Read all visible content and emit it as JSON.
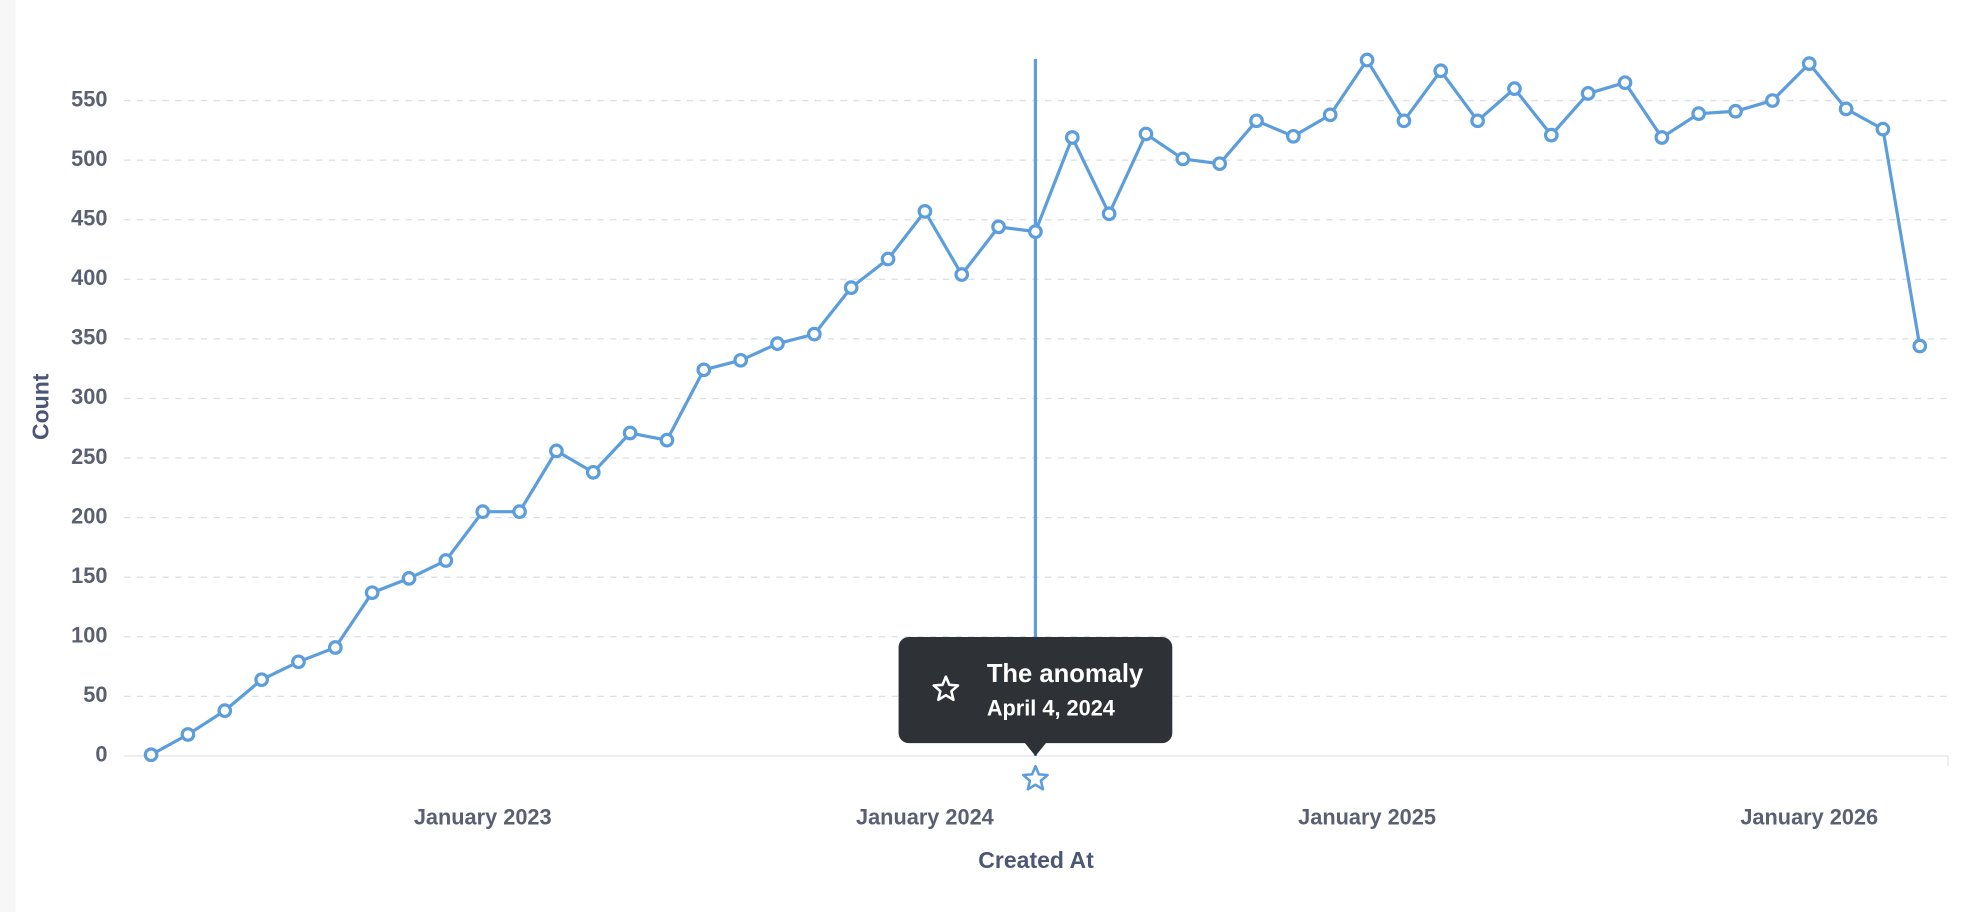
{
  "chart_data": {
    "type": "line",
    "x_label": "Created At",
    "y_label": "Count",
    "x": [
      "2022-04",
      "2022-05",
      "2022-06",
      "2022-07",
      "2022-08",
      "2022-09",
      "2022-10",
      "2022-11",
      "2022-12",
      "2023-01",
      "2023-02",
      "2023-03",
      "2023-04",
      "2023-05",
      "2023-06",
      "2023-07",
      "2023-08",
      "2023-09",
      "2023-10",
      "2023-11",
      "2023-12",
      "2024-01",
      "2024-02",
      "2024-03",
      "2024-04",
      "2024-05",
      "2024-06",
      "2024-07",
      "2024-08",
      "2024-09",
      "2024-10",
      "2024-11",
      "2024-12",
      "2025-01",
      "2025-02",
      "2025-03",
      "2025-04",
      "2025-05",
      "2025-06",
      "2025-07",
      "2025-08",
      "2025-09",
      "2025-10",
      "2025-11",
      "2025-12",
      "2026-01",
      "2026-02",
      "2026-03",
      "2026-04"
    ],
    "series": [
      {
        "name": "Count",
        "color": "#5c9ddc",
        "values": [
          1,
          18,
          38,
          64,
          79,
          91,
          137,
          149,
          164,
          205,
          205,
          256,
          238,
          271,
          265,
          324,
          332,
          346,
          354,
          393,
          417,
          457,
          404,
          444,
          440,
          519,
          455,
          522,
          501,
          497,
          533,
          520,
          538,
          584,
          533,
          575,
          533,
          560,
          521,
          556,
          565,
          519,
          539,
          541,
          550,
          581,
          543,
          526,
          344
        ]
      }
    ],
    "xlim": [
      "2022-03-09",
      "2026-04-24"
    ],
    "xticks": [
      {
        "value": "2023-01",
        "label": "January 2023"
      },
      {
        "value": "2024-01",
        "label": "January 2024"
      },
      {
        "value": "2025-01",
        "label": "January 2025"
      },
      {
        "value": "2026-01",
        "label": "January 2026"
      }
    ],
    "ylim": [
      0,
      585
    ],
    "yticks": [
      0,
      50,
      100,
      150,
      200,
      250,
      300,
      350,
      400,
      450,
      500,
      550
    ],
    "grid": true,
    "annotation": {
      "x": "2024-04",
      "title": "The anomaly",
      "date": "April 4, 2024"
    }
  }
}
